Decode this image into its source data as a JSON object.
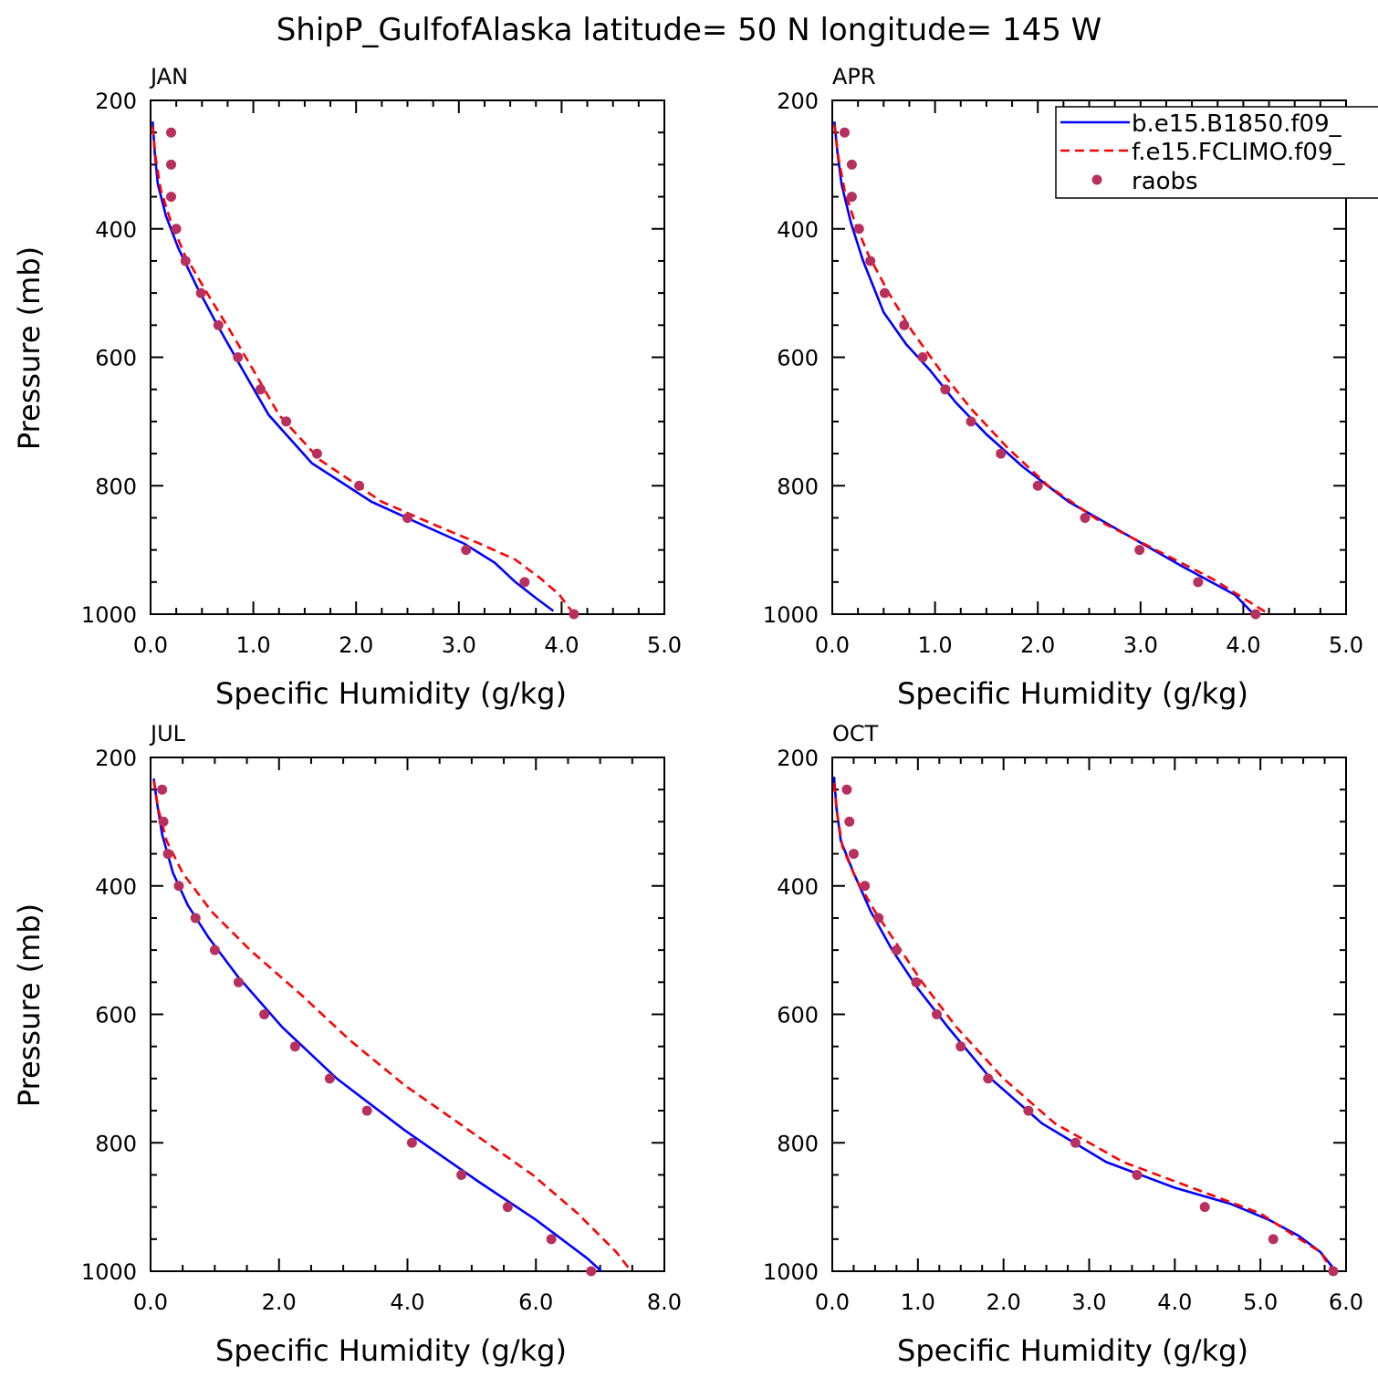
{
  "title": "ShipP_GulfofAlaska  latitude= 50 N longitude= 145 W",
  "colors": {
    "model_b": "#0000ff",
    "model_f": "#ff0000",
    "raobs": "#b8315e"
  },
  "legend": {
    "placement": "top-right",
    "entries": [
      "b.e15.B1850.f09_",
      "f.e15.FCLIMO.f09_",
      "raobs"
    ]
  },
  "chart_data": [
    {
      "type": "line",
      "panel_label": "JAN",
      "xlabel": "Specific Humidity (g/kg)",
      "ylabel": "Pressure (mb)",
      "xlim": [
        0,
        5
      ],
      "ylim": [
        200,
        1000
      ],
      "y_inverted": true,
      "grid": false,
      "xticks": [
        "0.0",
        "1.0",
        "2.0",
        "3.0",
        "4.0",
        "5.0"
      ],
      "yticks": [
        "200",
        "400",
        "600",
        "800",
        "1000"
      ],
      "series": [
        {
          "name": "b.e15.B1850.f09_",
          "style": "solid",
          "x": [
            0.02,
            0.04,
            0.07,
            0.15,
            0.27,
            0.45,
            0.65,
            0.88,
            1.15,
            1.57,
            2.15,
            2.7,
            3.05,
            3.35,
            3.55,
            3.75,
            3.92
          ],
          "y": [
            233,
            280,
            330,
            380,
            430,
            490,
            550,
            615,
            690,
            765,
            825,
            865,
            890,
            920,
            950,
            975,
            995
          ]
        },
        {
          "name": "f.e15.FCLIMO.f09_",
          "style": "dashed",
          "x": [
            0.02,
            0.05,
            0.1,
            0.2,
            0.33,
            0.55,
            0.78,
            1.0,
            1.25,
            1.65,
            2.25,
            2.75,
            3.2,
            3.55,
            3.8,
            3.98,
            4.12
          ],
          "y": [
            240,
            290,
            340,
            390,
            440,
            500,
            560,
            620,
            690,
            760,
            825,
            860,
            890,
            915,
            945,
            970,
            1000
          ]
        },
        {
          "name": "raobs",
          "style": "markers",
          "x": [
            0.2,
            0.2,
            0.2,
            0.25,
            0.34,
            0.49,
            0.66,
            0.85,
            1.07,
            1.32,
            1.62,
            2.03,
            2.5,
            3.07,
            3.64,
            4.12
          ],
          "y": [
            250,
            300,
            350,
            400,
            450,
            500,
            550,
            600,
            650,
            700,
            750,
            800,
            850,
            900,
            950,
            1000
          ]
        }
      ]
    },
    {
      "type": "line",
      "panel_label": "APR",
      "xlabel": "Specific Humidity (g/kg)",
      "ylabel": "",
      "xlim": [
        0,
        5
      ],
      "ylim": [
        200,
        1000
      ],
      "y_inverted": true,
      "grid": false,
      "xticks": [
        "0.0",
        "1.0",
        "2.0",
        "3.0",
        "4.0",
        "5.0"
      ],
      "yticks": [
        "200",
        "400",
        "600",
        "800",
        "1000"
      ],
      "series": [
        {
          "name": "b.e15.B1850.f09_",
          "style": "solid",
          "x": [
            0.02,
            0.05,
            0.09,
            0.18,
            0.3,
            0.5,
            0.72,
            0.95,
            1.2,
            1.5,
            1.85,
            2.3,
            2.85,
            3.4,
            3.92,
            4.1
          ],
          "y": [
            233,
            280,
            330,
            390,
            450,
            530,
            580,
            620,
            670,
            720,
            770,
            825,
            875,
            925,
            970,
            1000
          ]
        },
        {
          "name": "f.e15.FCLIMO.f09_",
          "style": "dashed",
          "x": [
            0.02,
            0.06,
            0.12,
            0.22,
            0.35,
            0.55,
            0.78,
            1.05,
            1.35,
            1.7,
            2.1,
            2.6,
            3.15,
            3.7,
            4.05,
            4.28
          ],
          "y": [
            238,
            290,
            340,
            390,
            440,
            500,
            560,
            620,
            680,
            740,
            800,
            855,
            900,
            945,
            980,
            1003
          ]
        },
        {
          "name": "raobs",
          "style": "markers",
          "x": [
            0.12,
            0.19,
            0.19,
            0.26,
            0.37,
            0.51,
            0.7,
            0.88,
            1.1,
            1.35,
            1.64,
            2.0,
            2.46,
            2.99,
            3.56,
            4.12
          ],
          "y": [
            250,
            300,
            350,
            400,
            450,
            500,
            550,
            600,
            650,
            700,
            750,
            800,
            850,
            900,
            950,
            1000
          ]
        }
      ]
    },
    {
      "type": "line",
      "panel_label": "JUL",
      "xlabel": "Specific Humidity (g/kg)",
      "ylabel": "Pressure (mb)",
      "xlim": [
        0,
        8
      ],
      "ylim": [
        200,
        1000
      ],
      "y_inverted": true,
      "grid": false,
      "xticks": [
        "0.0",
        "2.0",
        "4.0",
        "6.0",
        "8.0"
      ],
      "yticks": [
        "200",
        "400",
        "600",
        "800",
        "1000"
      ],
      "series": [
        {
          "name": "b.e15.B1850.f09_",
          "style": "solid",
          "x": [
            0.05,
            0.1,
            0.18,
            0.35,
            0.58,
            0.9,
            1.35,
            2.05,
            2.9,
            3.95,
            5.1,
            6.0,
            6.8,
            7.15
          ],
          "y": [
            233,
            270,
            320,
            380,
            430,
            480,
            540,
            620,
            700,
            780,
            860,
            920,
            980,
            1012
          ]
        },
        {
          "name": "f.e15.FCLIMO.f09_",
          "style": "dashed",
          "x": [
            0.05,
            0.12,
            0.25,
            0.5,
            0.95,
            1.55,
            2.35,
            3.1,
            3.95,
            4.95,
            5.95,
            6.65,
            7.25,
            7.6
          ],
          "y": [
            236,
            280,
            330,
            380,
            440,
            500,
            570,
            640,
            710,
            780,
            850,
            910,
            970,
            1015
          ]
        },
        {
          "name": "raobs",
          "style": "markers",
          "x": [
            0.18,
            0.2,
            0.27,
            0.44,
            0.7,
            1.0,
            1.37,
            1.77,
            2.25,
            2.79,
            3.37,
            4.07,
            4.84,
            5.56,
            6.24,
            6.86
          ],
          "y": [
            250,
            300,
            350,
            400,
            450,
            500,
            550,
            600,
            650,
            700,
            750,
            800,
            850,
            900,
            950,
            1000
          ]
        }
      ]
    },
    {
      "type": "line",
      "panel_label": "OCT",
      "xlabel": "Specific Humidity (g/kg)",
      "ylabel": "",
      "xlim": [
        0,
        6
      ],
      "ylim": [
        200,
        1000
      ],
      "y_inverted": true,
      "grid": false,
      "xticks": [
        "0.0",
        "1.0",
        "2.0",
        "3.0",
        "4.0",
        "5.0",
        "6.0"
      ],
      "yticks": [
        "200",
        "400",
        "600",
        "800",
        "1000"
      ],
      "series": [
        {
          "name": "b.e15.B1850.f09_",
          "style": "solid",
          "x": [
            0.02,
            0.05,
            0.1,
            0.25,
            0.45,
            0.7,
            1.0,
            1.35,
            1.85,
            2.45,
            3.2,
            4.0,
            4.65,
            5.1,
            5.45,
            5.7,
            5.85
          ],
          "y": [
            230,
            280,
            330,
            380,
            440,
            500,
            560,
            620,
            700,
            770,
            830,
            870,
            895,
            920,
            945,
            970,
            995
          ]
        },
        {
          "name": "f.e15.FCLIMO.f09_",
          "style": "dashed",
          "x": [
            0.02,
            0.06,
            0.12,
            0.28,
            0.5,
            0.75,
            1.05,
            1.45,
            2.0,
            2.6,
            3.4,
            4.3,
            5.0,
            5.4,
            5.7,
            5.82
          ],
          "y": [
            240,
            290,
            340,
            390,
            440,
            490,
            550,
            620,
            700,
            770,
            830,
            875,
            910,
            945,
            970,
            995
          ]
        },
        {
          "name": "raobs",
          "style": "markers",
          "x": [
            0.17,
            0.2,
            0.25,
            0.38,
            0.54,
            0.75,
            0.98,
            1.22,
            1.5,
            1.82,
            2.29,
            2.84,
            3.56,
            4.35,
            5.15,
            5.85
          ],
          "y": [
            250,
            300,
            350,
            400,
            450,
            500,
            550,
            600,
            650,
            700,
            750,
            800,
            850,
            900,
            950,
            1000
          ]
        }
      ]
    }
  ]
}
